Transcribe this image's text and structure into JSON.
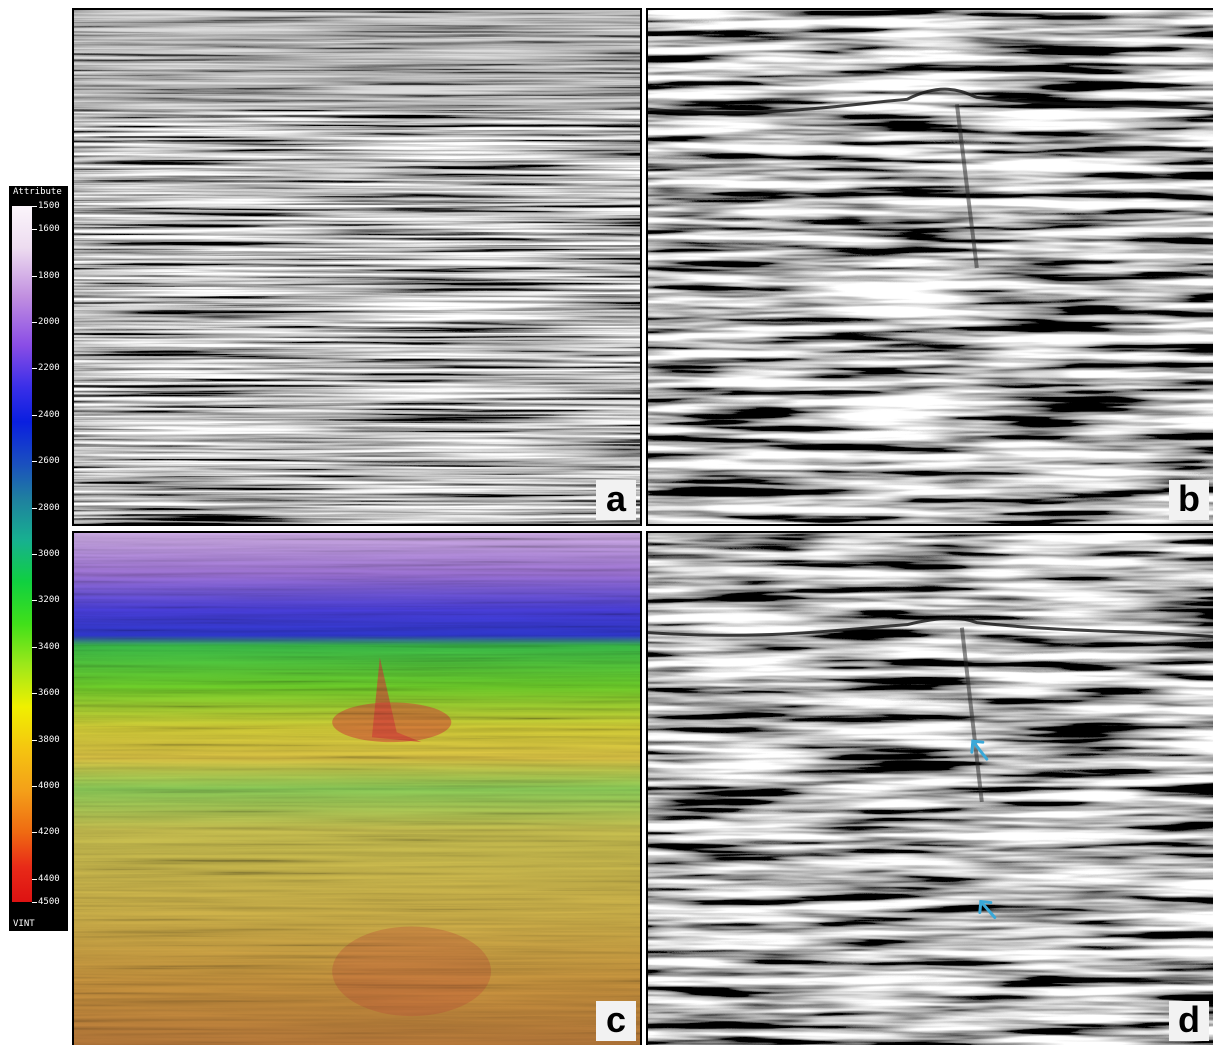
{
  "colorbar": {
    "title": "Attribute",
    "attribute": "VINT",
    "min": 1500,
    "max": 4500,
    "tick_labels": [
      "1500",
      "1600",
      "1800",
      "2000",
      "2200",
      "2400",
      "2600",
      "2800",
      "3000",
      "3200",
      "3400",
      "3600",
      "3800",
      "4000",
      "4200",
      "4400",
      "4500"
    ]
  },
  "panels": [
    {
      "id": "a",
      "label": "a"
    },
    {
      "id": "b",
      "label": "b"
    },
    {
      "id": "c",
      "label": "c"
    },
    {
      "id": "d",
      "label": "d"
    }
  ],
  "colors": {
    "annotation_arrow": "#3aa8d8",
    "label_box": "#f2f2f2"
  }
}
